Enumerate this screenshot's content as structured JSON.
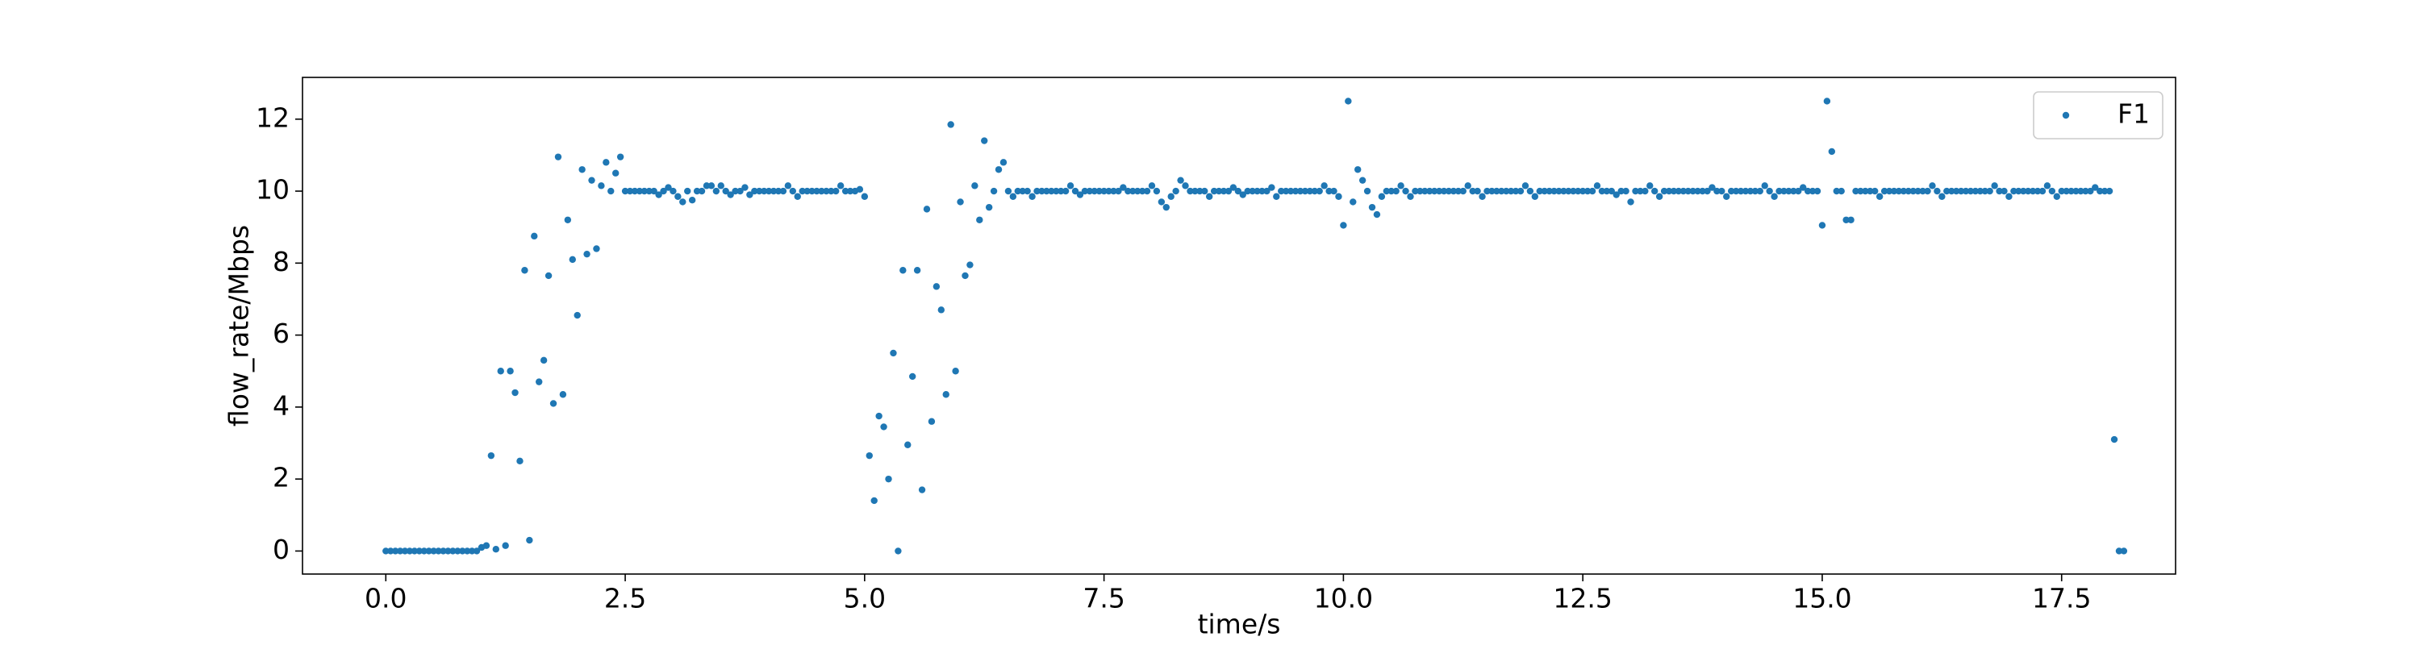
{
  "chart_data": {
    "type": "scatter",
    "xlabel": "time/s",
    "ylabel": "flow_rate/Mbps",
    "xlim": [
      -0.87,
      18.69
    ],
    "ylim": [
      -0.64,
      13.16
    ],
    "xticks": [
      {
        "value": 0,
        "label": "0.0"
      },
      2.5,
      {
        "value": 5,
        "label": "5.0"
      },
      7.5,
      {
        "value": 10,
        "label": "10.0"
      },
      12.5,
      {
        "value": 15,
        "label": "15.0"
      },
      17.5
    ],
    "yticks": [
      0,
      2,
      4,
      6,
      8,
      10,
      12
    ],
    "legend": "upper right",
    "series": [
      {
        "name": "F1",
        "color": "#1f77b4",
        "x": [
          0,
          0.05,
          0.1,
          0.15,
          0.2,
          0.25,
          0.3,
          0.35,
          0.4,
          0.45,
          0.5,
          0.55,
          0.6,
          0.65,
          0.7,
          0.75,
          0.8,
          0.85,
          0.9,
          0.95,
          1,
          1.05,
          1.1,
          1.15,
          1.2,
          1.25,
          1.3,
          1.35,
          1.4,
          1.45,
          1.5,
          1.55,
          1.6,
          1.65,
          1.7,
          1.75,
          1.8,
          1.85,
          1.9,
          1.95,
          2,
          2.05,
          2.1,
          2.15,
          2.2,
          2.25,
          2.3,
          2.35,
          2.4,
          2.45,
          2.5,
          2.55,
          2.6,
          2.65,
          2.7,
          2.75,
          2.8,
          2.85,
          2.9,
          2.95,
          3,
          3.05,
          3.1,
          3.15,
          3.2,
          3.25,
          3.3,
          3.35,
          3.4,
          3.45,
          3.5,
          3.55,
          3.6,
          3.65,
          3.7,
          3.75,
          3.8,
          3.85,
          3.9,
          3.95,
          4,
          4.05,
          4.1,
          4.15,
          4.2,
          4.25,
          4.3,
          4.35,
          4.4,
          4.45,
          4.5,
          4.55,
          4.6,
          4.65,
          4.7,
          4.75,
          4.8,
          4.85,
          4.9,
          4.95,
          5,
          5.05,
          5.1,
          5.15,
          5.2,
          5.25,
          5.3,
          5.35,
          5.4,
          5.45,
          5.5,
          5.55,
          5.6,
          5.65,
          5.7,
          5.75,
          5.8,
          5.85,
          5.9,
          5.95,
          6,
          6.05,
          6.1,
          6.15,
          6.2,
          6.25,
          6.3,
          6.35,
          6.4,
          6.45,
          6.5,
          6.55,
          6.6,
          6.65,
          6.7,
          6.75,
          6.8,
          6.85,
          6.9,
          6.95,
          7,
          7.05,
          7.1,
          7.15,
          7.2,
          7.25,
          7.3,
          7.35,
          7.4,
          7.45,
          7.5,
          7.55,
          7.6,
          7.65,
          7.7,
          7.75,
          7.8,
          7.85,
          7.9,
          7.95,
          8,
          8.05,
          8.1,
          8.15,
          8.2,
          8.25,
          8.3,
          8.35,
          8.4,
          8.45,
          8.5,
          8.55,
          8.6,
          8.65,
          8.7,
          8.75,
          8.8,
          8.85,
          8.9,
          8.95,
          9,
          9.05,
          9.1,
          9.15,
          9.2,
          9.25,
          9.3,
          9.35,
          9.4,
          9.45,
          9.5,
          9.55,
          9.6,
          9.65,
          9.7,
          9.75,
          9.8,
          9.85,
          9.9,
          9.95,
          10,
          10.05,
          10.1,
          10.15,
          10.2,
          10.25,
          10.3,
          10.35,
          10.4,
          10.45,
          10.5,
          10.55,
          10.6,
          10.65,
          10.7,
          10.75,
          10.8,
          10.85,
          10.9,
          10.95,
          11,
          11.05,
          11.1,
          11.15,
          11.2,
          11.25,
          11.3,
          11.35,
          11.4,
          11.45,
          11.5,
          11.55,
          11.6,
          11.65,
          11.7,
          11.75,
          11.8,
          11.85,
          11.9,
          11.95,
          12,
          12.05,
          12.1,
          12.15,
          12.2,
          12.25,
          12.3,
          12.35,
          12.4,
          12.45,
          12.5,
          12.55,
          12.6,
          12.65,
          12.7,
          12.75,
          12.8,
          12.85,
          12.9,
          12.95,
          13,
          13.05,
          13.1,
          13.15,
          13.2,
          13.25,
          13.3,
          13.35,
          13.4,
          13.45,
          13.5,
          13.55,
          13.6,
          13.65,
          13.7,
          13.75,
          13.8,
          13.85,
          13.9,
          13.95,
          14,
          14.05,
          14.1,
          14.15,
          14.2,
          14.25,
          14.3,
          14.35,
          14.4,
          14.45,
          14.5,
          14.55,
          14.6,
          14.65,
          14.7,
          14.75,
          14.8,
          14.85,
          14.9,
          14.95,
          15,
          15.05,
          15.1,
          15.15,
          15.2,
          15.25,
          15.3,
          15.35,
          15.4,
          15.45,
          15.5,
          15.55,
          15.6,
          15.65,
          15.7,
          15.75,
          15.8,
          15.85,
          15.9,
          15.95,
          16,
          16.05,
          16.1,
          16.15,
          16.2,
          16.25,
          16.3,
          16.35,
          16.4,
          16.45,
          16.5,
          16.55,
          16.6,
          16.65,
          16.7,
          16.75,
          16.8,
          16.85,
          16.9,
          16.95,
          17,
          17.05,
          17.1,
          17.15,
          17.2,
          17.25,
          17.3,
          17.35,
          17.4,
          17.45,
          17.5,
          17.55,
          17.6,
          17.65,
          17.7,
          17.75,
          17.8,
          17.85,
          17.9,
          17.95,
          18,
          18.05,
          18.1,
          18.15
        ],
        "values": [
          0,
          0,
          0,
          0,
          0,
          0,
          0,
          0,
          0,
          0,
          0,
          0,
          0,
          0,
          0,
          0,
          0,
          0,
          0,
          0,
          0.1,
          0.15,
          2.65,
          0.05,
          5.0,
          0.15,
          5.0,
          4.4,
          2.5,
          7.8,
          0.3,
          8.75,
          4.7,
          5.3,
          7.65,
          4.1,
          10.95,
          4.35,
          9.2,
          8.1,
          6.55,
          10.6,
          8.25,
          10.3,
          8.4,
          10.15,
          10.8,
          10,
          10.5,
          10.95,
          10,
          10,
          10,
          10,
          10,
          10,
          10,
          9.9,
          10,
          10.1,
          10,
          9.85,
          9.7,
          10,
          9.75,
          10,
          10,
          10.15,
          10.15,
          10,
          10.15,
          10,
          9.9,
          10,
          10,
          10.1,
          9.9,
          10,
          10,
          10,
          10,
          10,
          10,
          10,
          10.15,
          10,
          9.85,
          10,
          10,
          10,
          10,
          10,
          10,
          10,
          10,
          10.15,
          10,
          10,
          10,
          10.05,
          9.85,
          2.65,
          1.4,
          3.75,
          3.45,
          2.0,
          5.5,
          0,
          7.8,
          2.95,
          4.85,
          7.8,
          1.7,
          9.5,
          3.6,
          7.35,
          6.7,
          4.35,
          11.85,
          5.0,
          9.7,
          7.65,
          7.95,
          10.15,
          9.2,
          11.4,
          9.55,
          10,
          10.6,
          10.8,
          10,
          9.85,
          10,
          10,
          10,
          9.85,
          10,
          10,
          10,
          10,
          10,
          10,
          10,
          10.15,
          10,
          9.9,
          10,
          10,
          10,
          10,
          10,
          10,
          10,
          10,
          10.1,
          10,
          10,
          10,
          10,
          10,
          10.15,
          10,
          9.7,
          9.55,
          9.85,
          10,
          10.3,
          10.15,
          10,
          10,
          10,
          10,
          9.85,
          10,
          10,
          10,
          10,
          10.1,
          10,
          9.9,
          10,
          10,
          10,
          10,
          10,
          10.1,
          9.85,
          10,
          10,
          10,
          10,
          10,
          10,
          10,
          10,
          10,
          10.15,
          10,
          10,
          9.85,
          9.05,
          12.5,
          9.7,
          10.6,
          10.3,
          10,
          9.55,
          9.35,
          9.85,
          10,
          10,
          10,
          10.15,
          10,
          9.85,
          10,
          10,
          10,
          10,
          10,
          10,
          10,
          10,
          10,
          10,
          10,
          10.15,
          10,
          10,
          9.85,
          10,
          10,
          10,
          10,
          10,
          10,
          10,
          10,
          10.15,
          10,
          9.85,
          10,
          10,
          10,
          10,
          10,
          10,
          10,
          10,
          10,
          10,
          10,
          10,
          10.15,
          10,
          10,
          10,
          9.9,
          10,
          10,
          9.7,
          10,
          10,
          10,
          10.15,
          10,
          9.85,
          10,
          10,
          10,
          10,
          10,
          10,
          10,
          10,
          10,
          10,
          10.1,
          10,
          10,
          9.85,
          10,
          10,
          10,
          10,
          10,
          10,
          10,
          10.15,
          10,
          9.85,
          10,
          10,
          10,
          10,
          10,
          10.1,
          10,
          10,
          10,
          9.05,
          12.5,
          11.1,
          10,
          10,
          9.2,
          9.2,
          10,
          10,
          10,
          10,
          10,
          9.85,
          10,
          10,
          10,
          10,
          10,
          10,
          10,
          10,
          10,
          10,
          10.15,
          10,
          9.85,
          10,
          10,
          10,
          10,
          10,
          10,
          10,
          10,
          10,
          10,
          10.15,
          10,
          10,
          9.85,
          10,
          10,
          10,
          10,
          10,
          10,
          10,
          10.15,
          10,
          9.85,
          10,
          10,
          10,
          10,
          10,
          10,
          10,
          10.1,
          10,
          10,
          10,
          3.1,
          0,
          0
        ]
      }
    ]
  }
}
